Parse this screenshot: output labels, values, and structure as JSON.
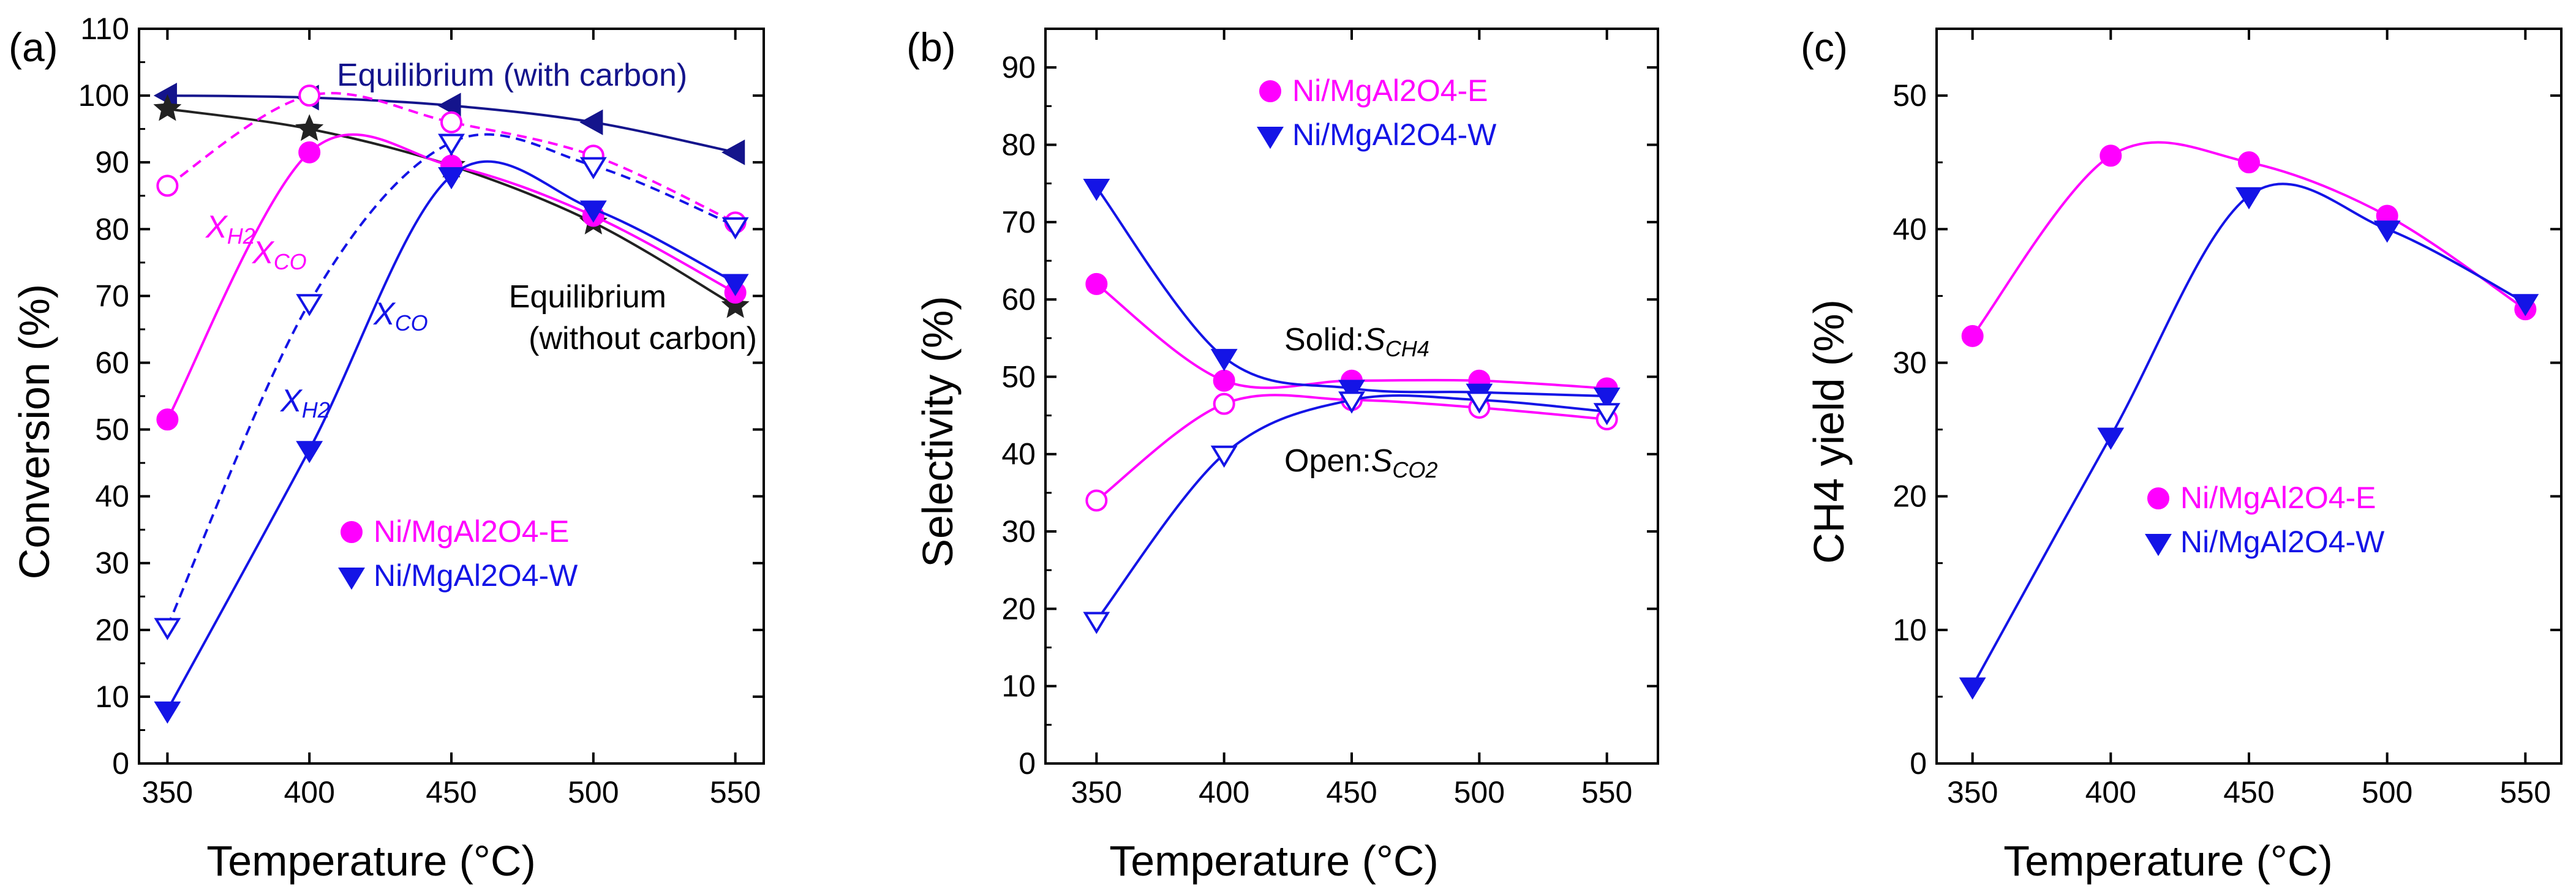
{
  "colors": {
    "magenta": "#ff00ff",
    "blue": "#1414e6",
    "navy": "#14148c",
    "black": "#222222"
  },
  "chart_data": [
    {
      "type": "line",
      "panel_label": "(a)",
      "xlabel": "Temperature (°C)",
      "ylabel": "Conversion (%)",
      "xlim": [
        340,
        560
      ],
      "ylim": [
        0,
        110
      ],
      "xticks": [
        350,
        400,
        450,
        500,
        550
      ],
      "yticks": [
        0,
        10,
        20,
        30,
        40,
        50,
        60,
        70,
        80,
        90,
        100,
        110
      ],
      "x": [
        350,
        400,
        450,
        500,
        550
      ],
      "series": [
        {
          "name": "Equilibrium (with carbon)",
          "color": "#14148c",
          "marker": "tri-left",
          "filled": true,
          "dash": false,
          "values": [
            100,
            99.7,
            98.5,
            96,
            91.5
          ]
        },
        {
          "name": "Equilibrium (without carbon)",
          "color": "#222222",
          "marker": "star",
          "filled": true,
          "dash": false,
          "values": [
            98,
            95,
            89.5,
            81,
            68.5
          ]
        },
        {
          "name": "Ni/MgAl2O4-E X_CO",
          "color": "#ff00ff",
          "marker": "circle",
          "filled": true,
          "dash": false,
          "values": [
            51.5,
            91.5,
            89.5,
            82,
            70.5
          ]
        },
        {
          "name": "Ni/MgAl2O4-E X_H2",
          "color": "#ff00ff",
          "marker": "circle",
          "filled": false,
          "dash": true,
          "values": [
            86.5,
            100,
            96,
            91,
            81
          ]
        },
        {
          "name": "Ni/MgAl2O4-W X_CO",
          "color": "#1414e6",
          "marker": "tri-down",
          "filled": true,
          "dash": false,
          "values": [
            8,
            47,
            88,
            83,
            72
          ]
        },
        {
          "name": "Ni/MgAl2O4-W X_H2",
          "color": "#1414e6",
          "marker": "tri-down",
          "filled": false,
          "dash": true,
          "values": [
            20.5,
            69,
            93,
            89.5,
            80.5
          ]
        }
      ],
      "annotations": {
        "eq_with": "Equilibrium (with carbon)",
        "eq_without_1": "Equilibrium",
        "eq_without_2": "(without carbon)",
        "x_h2_e": "X",
        "x_h2_e_sub": "H2",
        "x_co_e": "X",
        "x_co_e_sub": "CO",
        "x_co_w": "X",
        "x_co_w_sub": "CO",
        "x_h2_w": "X",
        "x_h2_w_sub": "H2"
      },
      "legend": [
        {
          "label": "Ni/MgAl2O4-E",
          "color": "#ff00ff",
          "marker": "circle"
        },
        {
          "label": "Ni/MgAl2O4-W",
          "color": "#1414e6",
          "marker": "tri-down"
        }
      ]
    },
    {
      "type": "line",
      "panel_label": "(b)",
      "xlabel": "Temperature (°C)",
      "ylabel": "Selectivity (%)",
      "xlim": [
        330,
        570
      ],
      "ylim": [
        0,
        95
      ],
      "xticks": [
        350,
        400,
        450,
        500,
        550
      ],
      "yticks": [
        0,
        10,
        20,
        30,
        40,
        50,
        60,
        70,
        80,
        90
      ],
      "x": [
        350,
        400,
        450,
        500,
        550
      ],
      "series": [
        {
          "name": "Ni/MgAl2O4-E S_CH4",
          "color": "#ff00ff",
          "marker": "circle",
          "filled": true,
          "dash": false,
          "values": [
            62,
            49.5,
            49.5,
            49.5,
            48.5
          ]
        },
        {
          "name": "Ni/MgAl2O4-E S_CO2",
          "color": "#ff00ff",
          "marker": "circle",
          "filled": false,
          "dash": false,
          "values": [
            34,
            46.5,
            47,
            46,
            44.5
          ]
        },
        {
          "name": "Ni/MgAl2O4-W S_CH4",
          "color": "#1414e6",
          "marker": "tri-down",
          "filled": true,
          "dash": false,
          "values": [
            74.5,
            52.5,
            48.5,
            48,
            47.5
          ]
        },
        {
          "name": "Ni/MgAl2O4-W S_CO2",
          "color": "#1414e6",
          "marker": "tri-down",
          "filled": false,
          "dash": false,
          "values": [
            18.5,
            40,
            47,
            47,
            45.5
          ]
        }
      ],
      "annotations": {
        "solid": "Solid:",
        "solid_s": "S",
        "solid_sub": "CH4",
        "open": "Open:",
        "open_s": "S",
        "open_sub": "CO2"
      },
      "legend": [
        {
          "label": "Ni/MgAl2O4-E",
          "color": "#ff00ff",
          "marker": "circle"
        },
        {
          "label": "Ni/MgAl2O4-W",
          "color": "#1414e6",
          "marker": "tri-down"
        }
      ]
    },
    {
      "type": "line",
      "panel_label": "(c)",
      "xlabel": "Temperature (°C)",
      "ylabel": "CH4 yield (%)",
      "xlim": [
        337,
        563
      ],
      "ylim": [
        0,
        55
      ],
      "xticks": [
        350,
        400,
        450,
        500,
        550
      ],
      "yticks": [
        0,
        10,
        20,
        30,
        40,
        50
      ],
      "x": [
        350,
        400,
        450,
        500,
        550
      ],
      "series": [
        {
          "name": "Ni/MgAl2O4-E",
          "color": "#ff00ff",
          "marker": "circle",
          "filled": true,
          "dash": false,
          "values": [
            32,
            45.5,
            45,
            41,
            34
          ]
        },
        {
          "name": "Ni/MgAl2O4-W",
          "color": "#1414e6",
          "marker": "tri-down",
          "filled": true,
          "dash": false,
          "values": [
            5.8,
            24.5,
            42.5,
            40,
            34.5
          ]
        }
      ],
      "legend": [
        {
          "label": "Ni/MgAl2O4-E",
          "color": "#ff00ff",
          "marker": "circle"
        },
        {
          "label": "Ni/MgAl2O4-W",
          "color": "#1414e6",
          "marker": "tri-down"
        }
      ]
    }
  ]
}
